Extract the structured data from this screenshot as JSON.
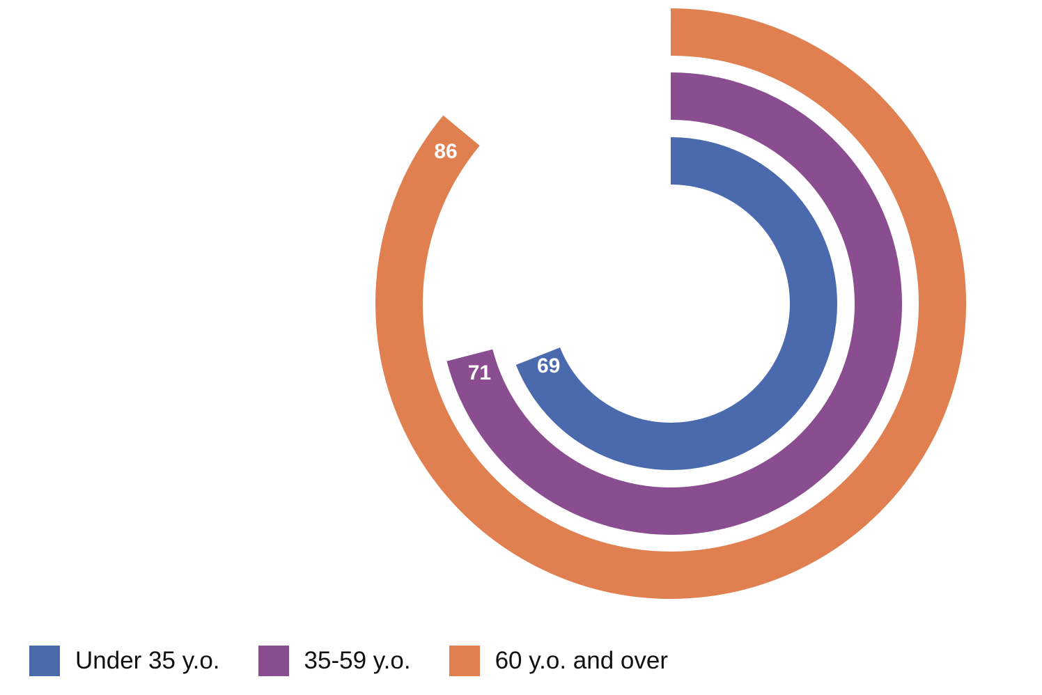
{
  "chart_data": {
    "type": "radial-bar",
    "max": 100,
    "series": [
      {
        "name": "Under 35 y.o.",
        "value": 69,
        "label": "69",
        "color": "#4a6aad"
      },
      {
        "name": "35-59 y.o.",
        "value": 71,
        "label": "71",
        "color": "#894d90"
      },
      {
        "name": "60 y.o. and over",
        "value": 86,
        "label": "86",
        "color": "#e07f4f"
      }
    ],
    "legend_position": "bottom-left"
  },
  "legend": {
    "items": [
      {
        "label": "Under 35 y.o.",
        "color": "#4a6aad"
      },
      {
        "label": "35-59 y.o.",
        "color": "#894d90"
      },
      {
        "label": "60 y.o. and over",
        "color": "#e07f4f"
      }
    ]
  }
}
